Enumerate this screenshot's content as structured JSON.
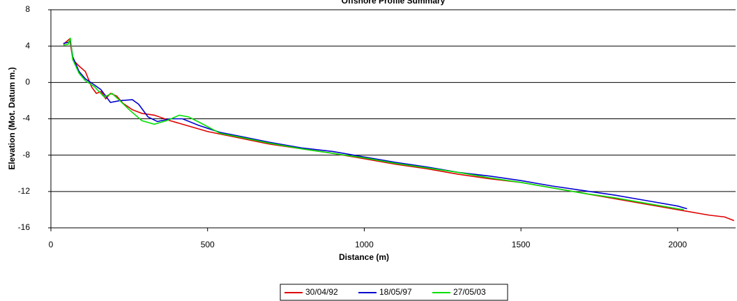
{
  "chart_data": {
    "type": "line",
    "title": "Offshore Profile Summary",
    "x_label": "Distance (m)",
    "y_label": "Elevation (Mot. Datum m.)",
    "xlim": [
      0,
      2185
    ],
    "xticks": [
      0,
      500,
      1000,
      1500,
      2000
    ],
    "ylim": [
      -16,
      8
    ],
    "yticks": [
      8,
      4,
      0,
      -4,
      -8,
      -12,
      -16
    ],
    "grid": true,
    "legend": "bottom",
    "series": [
      {
        "name": "30/04/92",
        "color": "#e00000",
        "x": [
          40,
          50,
          60,
          70,
          90,
          110,
          130,
          145,
          160,
          175,
          190,
          210,
          230,
          260,
          290,
          330,
          380,
          430,
          500,
          600,
          700,
          800,
          900,
          1000,
          1100,
          1200,
          1300,
          1400,
          1500,
          1600,
          1700,
          1800,
          1900,
          2000,
          2100,
          2150,
          2180
        ],
        "values": [
          4.2,
          4.5,
          4.8,
          2.5,
          1.8,
          1.2,
          -0.5,
          -1.2,
          -1.0,
          -1.8,
          -1.2,
          -1.5,
          -2.3,
          -3.0,
          -3.4,
          -3.6,
          -4.2,
          -4.7,
          -5.4,
          -6.1,
          -6.8,
          -7.3,
          -7.8,
          -8.4,
          -9.0,
          -9.5,
          -10.1,
          -10.6,
          -11.0,
          -11.6,
          -12.2,
          -12.8,
          -13.4,
          -14.0,
          -14.6,
          -14.8,
          -15.2
        ]
      },
      {
        "name": "18/05/97",
        "color": "#0000d0",
        "x": [
          40,
          55,
          62,
          70,
          90,
          110,
          140,
          160,
          190,
          220,
          260,
          280,
          310,
          340,
          380,
          420,
          470,
          540,
          600,
          700,
          800,
          900,
          1000,
          1100,
          1200,
          1300,
          1400,
          1500,
          1600,
          1700,
          1800,
          1900,
          2000,
          2030
        ],
        "values": [
          4.3,
          4.4,
          4.6,
          2.8,
          1.2,
          0.4,
          -0.3,
          -0.8,
          -2.2,
          -2.0,
          -1.9,
          -2.4,
          -3.8,
          -4.3,
          -4.0,
          -4.0,
          -4.7,
          -5.5,
          -5.9,
          -6.6,
          -7.2,
          -7.6,
          -8.2,
          -8.8,
          -9.3,
          -9.9,
          -10.3,
          -10.8,
          -11.4,
          -11.9,
          -12.4,
          -13.0,
          -13.6,
          -13.9
        ]
      },
      {
        "name": "27/05/03",
        "color": "#00e000",
        "x": [
          40,
          55,
          62,
          70,
          90,
          110,
          140,
          170,
          195,
          220,
          250,
          290,
          330,
          370,
          410,
          440,
          480,
          540,
          600,
          700,
          800,
          900,
          1000,
          1100,
          1200,
          1300,
          1400,
          1500,
          1600,
          1700,
          1800,
          1900,
          2000,
          2020
        ],
        "values": [
          4.1,
          4.2,
          4.9,
          2.5,
          1.0,
          0.2,
          -0.5,
          -1.6,
          -1.2,
          -2.0,
          -3.0,
          -4.2,
          -4.6,
          -4.2,
          -3.6,
          -3.8,
          -4.5,
          -5.6,
          -6.0,
          -6.7,
          -7.3,
          -7.8,
          -8.3,
          -8.9,
          -9.4,
          -9.9,
          -10.5,
          -11.0,
          -11.6,
          -12.2,
          -12.7,
          -13.3,
          -13.9,
          -14.0
        ]
      }
    ]
  }
}
